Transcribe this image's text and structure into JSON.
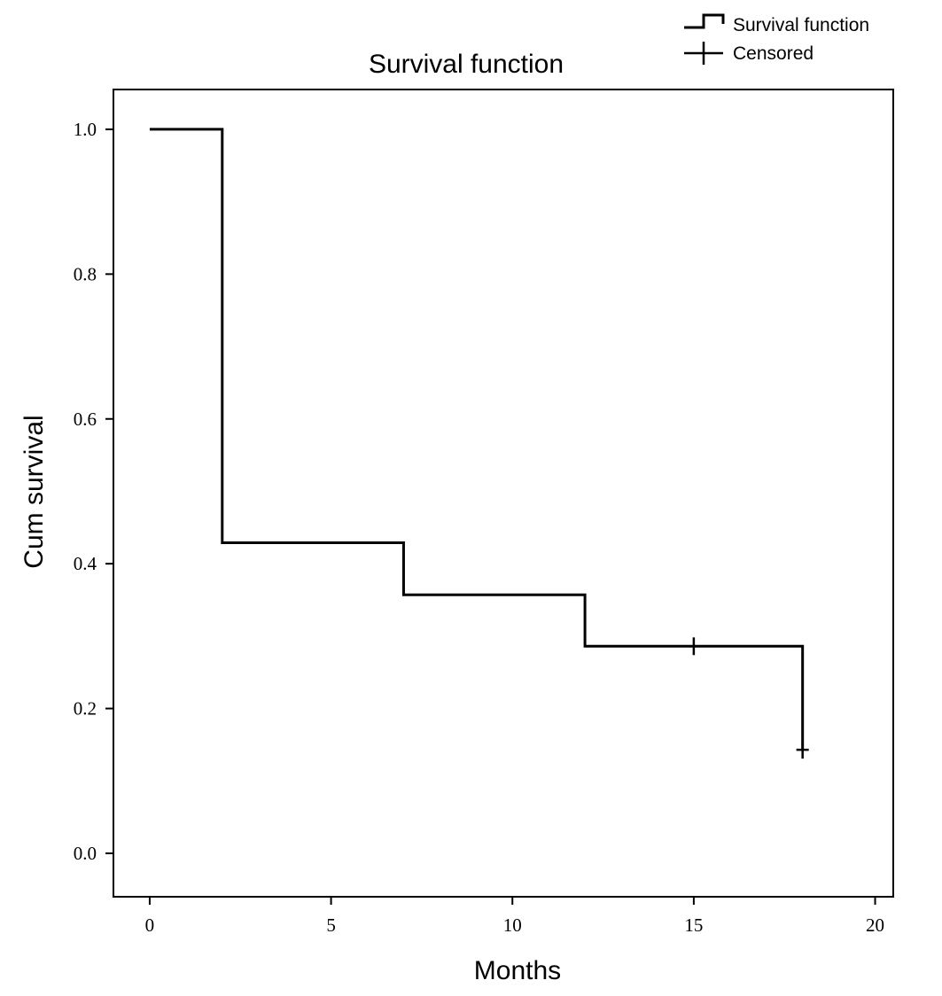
{
  "chart_data": {
    "type": "line",
    "subtype": "kaplan-meier-step",
    "title": "Survival function",
    "xlabel": "Months",
    "ylabel": "Cum survival",
    "xlim": [
      -1,
      20.5
    ],
    "ylim": [
      -0.06,
      1.055
    ],
    "x_ticks": [
      0,
      5,
      10,
      15,
      20
    ],
    "x_tick_labels": [
      "0",
      "5",
      "10",
      "15",
      "20"
    ],
    "y_ticks": [
      0.0,
      0.2,
      0.4,
      0.6,
      0.8,
      1.0
    ],
    "y_tick_labels": [
      "0.0",
      "0.2",
      "0.4",
      "0.6",
      "0.8",
      "1.0"
    ],
    "grid": false,
    "legend": {
      "placement": "top-right, outside plot",
      "entries": [
        {
          "label": "Survival function",
          "symbol": "step"
        },
        {
          "label": "Censored",
          "symbol": "plus"
        }
      ]
    },
    "series": [
      {
        "name": "Survival function",
        "steps": [
          {
            "x": 0,
            "y": 1.0
          },
          {
            "x": 2,
            "y": 0.429
          },
          {
            "x": 7,
            "y": 0.357
          },
          {
            "x": 12,
            "y": 0.286
          },
          {
            "x": 18,
            "y": 0.143
          }
        ],
        "end_x": 18
      },
      {
        "name": "Censored",
        "points": [
          {
            "x": 15,
            "y": 0.286
          },
          {
            "x": 18,
            "y": 0.143
          }
        ]
      }
    ],
    "colors": {
      "line": "#000000",
      "background": "#ffffff"
    }
  }
}
